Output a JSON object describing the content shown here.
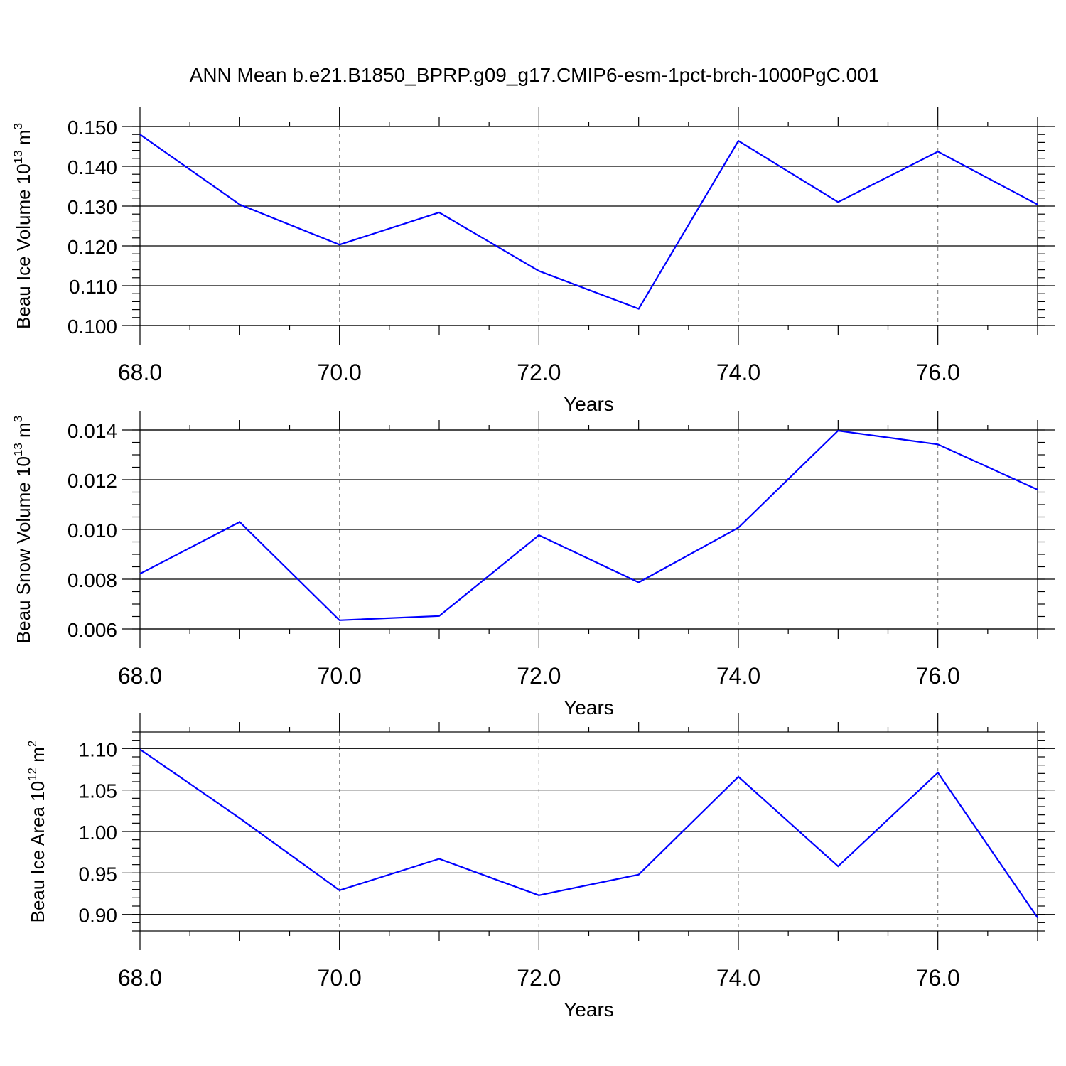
{
  "title": "ANN Mean b.e21.B1850_BPRP.g09_g17.CMIP6-esm-1pct-brch-1000PgC.001",
  "colors": {
    "line": "#0000ff",
    "grid": "#8a8a8a",
    "axis": "#000000"
  },
  "chart_data": [
    {
      "type": "line",
      "ylabel": "Beau Ice Volume",
      "yunit_base": "10",
      "yunit_exp": "13",
      "yunit_tail": "m",
      "yunit_tail_exp": "3",
      "xlabel": "Years",
      "xlim": [
        68,
        77
      ],
      "ylim": [
        0.1,
        0.15
      ],
      "x_ticks": [
        "68.0",
        "70.0",
        "72.0",
        "74.0",
        "76.0"
      ],
      "y_ticks": [
        "0.100",
        "0.110",
        "0.120",
        "0.130",
        "0.140",
        "0.150"
      ],
      "grid": "vertical dashed at labeled x ticks",
      "series": [
        {
          "x": [
            68,
            69,
            70,
            71,
            72,
            73,
            74,
            75,
            76,
            77
          ],
          "values": [
            0.148,
            0.1304,
            0.1203,
            0.1284,
            0.1137,
            0.1042,
            0.1464,
            0.131,
            0.1437,
            0.1304
          ]
        }
      ]
    },
    {
      "type": "line",
      "ylabel": "Beau Snow Volume",
      "yunit_base": "10",
      "yunit_exp": "13",
      "yunit_tail": "m",
      "yunit_tail_exp": "3",
      "xlabel": "Years",
      "xlim": [
        68,
        77
      ],
      "ylim": [
        0.006,
        0.014
      ],
      "x_ticks": [
        "68.0",
        "70.0",
        "72.0",
        "74.0",
        "76.0"
      ],
      "y_ticks": [
        "0.006",
        "0.008",
        "0.010",
        "0.012",
        "0.014"
      ],
      "grid": "vertical dashed at labeled x ticks",
      "series": [
        {
          "x": [
            68,
            69,
            70,
            71,
            72,
            73,
            74,
            75,
            76,
            77
          ],
          "values": [
            0.00822,
            0.0103,
            0.00635,
            0.00652,
            0.00977,
            0.00787,
            0.01007,
            0.01397,
            0.01342,
            0.0116
          ]
        }
      ]
    },
    {
      "type": "line",
      "ylabel": "Beau Ice Area",
      "yunit_base": "10",
      "yunit_exp": "12",
      "yunit_tail": "m",
      "yunit_tail_exp": "2",
      "xlabel": "Years",
      "xlim": [
        68,
        77
      ],
      "ylim": [
        0.88,
        1.12
      ],
      "x_ticks": [
        "68.0",
        "70.0",
        "72.0",
        "74.0",
        "76.0"
      ],
      "y_ticks": [
        "0.90",
        "0.95",
        "1.00",
        "1.05",
        "1.10"
      ],
      "grid": "vertical dashed at labeled x ticks",
      "series": [
        {
          "x": [
            68,
            69,
            70,
            71,
            72,
            73,
            74,
            75,
            76,
            77
          ],
          "values": [
            1.099,
            1.016,
            0.929,
            0.967,
            0.923,
            0.948,
            1.066,
            0.958,
            1.071,
            0.896
          ]
        }
      ]
    }
  ]
}
